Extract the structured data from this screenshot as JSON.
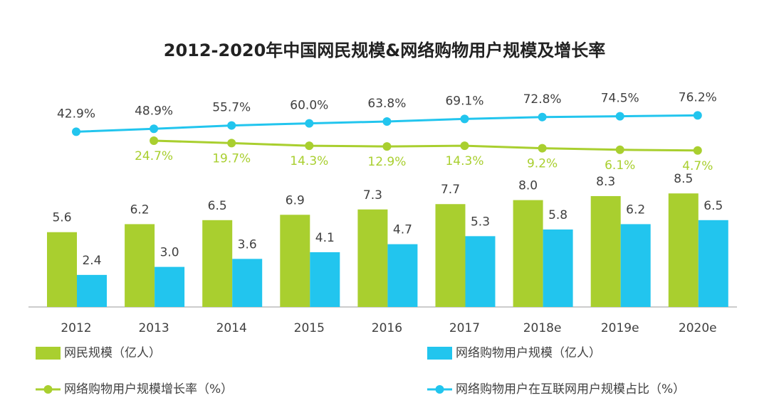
{
  "chart_data": {
    "type": "bar",
    "title": "2012-2020年中国网民规模&网络购物用户规模及增长率",
    "categories": [
      "2012",
      "2013",
      "2014",
      "2015",
      "2016",
      "2017",
      "2018e",
      "2019e",
      "2020e"
    ],
    "series": [
      {
        "name": "网民规模（亿人）",
        "type": "bar",
        "color": "#a9cf2f",
        "values": [
          5.6,
          6.2,
          6.5,
          6.9,
          7.3,
          7.7,
          8.0,
          8.3,
          8.5
        ],
        "value_labels": [
          "5.6",
          "6.2",
          "6.5",
          "6.9",
          "7.3",
          "7.7",
          "8.0",
          "8.3",
          "8.5"
        ]
      },
      {
        "name": "网络购物用户规模（亿人）",
        "type": "bar",
        "color": "#22c5ee",
        "values": [
          2.4,
          3.0,
          3.6,
          4.1,
          4.7,
          5.3,
          5.8,
          6.2,
          6.5
        ],
        "value_labels": [
          "2.4",
          "3.0",
          "3.6",
          "4.1",
          "4.7",
          "5.3",
          "5.8",
          "6.2",
          "6.5"
        ]
      },
      {
        "name": "网络购物用户规模增长率（%）",
        "type": "line",
        "color": "#a9cf2f",
        "label_color": "#a9cf2f",
        "values": [
          null,
          24.7,
          19.7,
          14.3,
          12.9,
          14.3,
          9.2,
          6.1,
          4.7
        ],
        "value_labels": [
          null,
          "24.7%",
          "19.7%",
          "14.3%",
          "12.9%",
          "14.3%",
          "9.2%",
          "6.1%",
          "4.7%"
        ]
      },
      {
        "name": "网络购物用户在互联网用户规模占比（%）",
        "type": "line",
        "color": "#22c5ee",
        "label_color": "#404040",
        "values": [
          42.9,
          48.9,
          55.7,
          60.0,
          63.8,
          69.1,
          72.8,
          74.5,
          76.2
        ],
        "value_labels": [
          "42.9%",
          "48.9%",
          "55.7%",
          "60.0%",
          "63.8%",
          "69.1%",
          "72.8%",
          "74.5%",
          "76.2%"
        ]
      }
    ]
  }
}
